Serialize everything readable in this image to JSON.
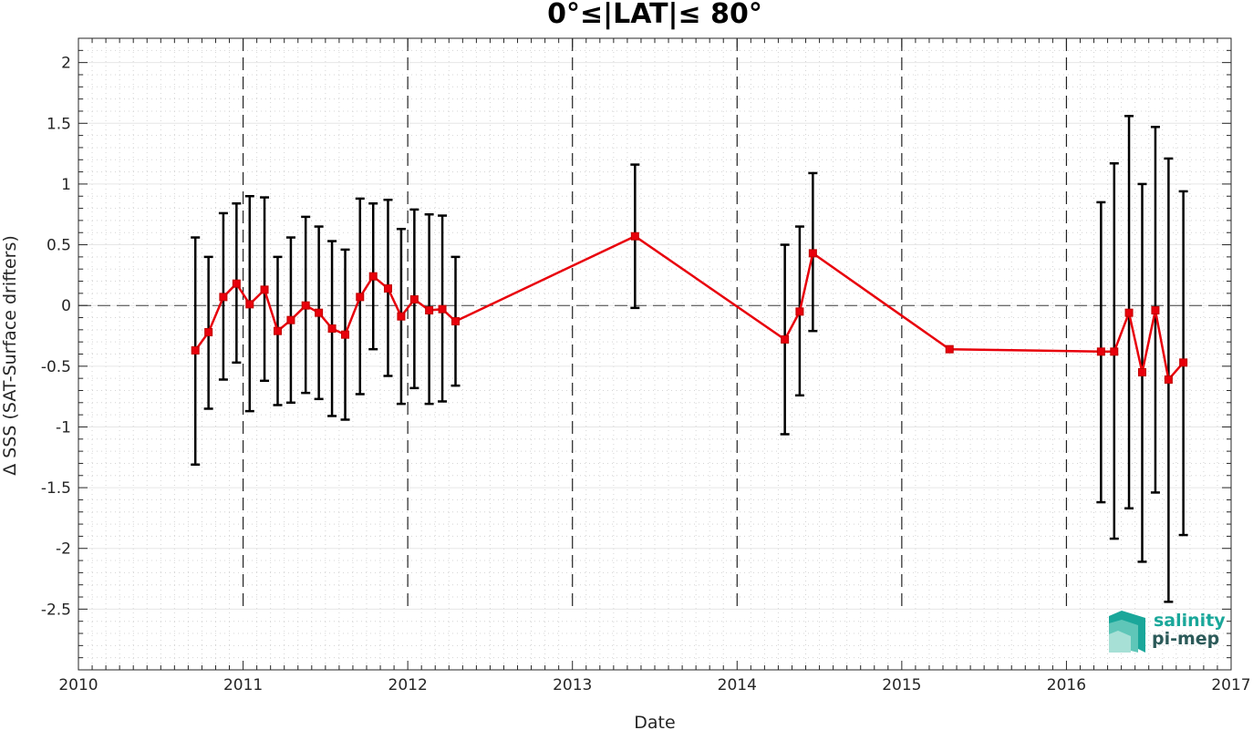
{
  "chart_data": {
    "type": "line",
    "title": "0°≤|LAT|≤ 80°",
    "xlabel": "Date",
    "ylabel": "Δ SSS (SAT-Surface drifters)",
    "xlim": [
      2010,
      2017
    ],
    "ylim": [
      -3,
      2.2
    ],
    "x_ticks": [
      "2010",
      "2011",
      "2012",
      "2013",
      "2014",
      "2015",
      "2016",
      "2017"
    ],
    "y_ticks": [
      "2",
      "1.5",
      "1",
      "0.5",
      "0",
      "-0.5",
      "-1",
      "-1.5",
      "-2",
      "-2.5"
    ],
    "grid": true,
    "minor_grid": true,
    "year_separators": "dashed vertical lines at each year",
    "zero_line": "dashed horizontal line at 0",
    "line_color": "#e8000b",
    "errorbar_color": "#000000",
    "series": [
      {
        "x": [
          2010.71,
          2010.79,
          2010.88,
          2010.96,
          2011.04,
          2011.13,
          2011.21,
          2011.29,
          2011.38,
          2011.46,
          2011.54,
          2011.62,
          2011.71,
          2011.79,
          2011.88,
          2011.96,
          2012.04,
          2012.13,
          2012.21,
          2012.29,
          2013.38,
          2014.29,
          2014.38,
          2014.46,
          2015.29,
          2016.21,
          2016.29,
          2016.38,
          2016.46,
          2016.54,
          2016.62,
          2016.71
        ],
        "y": [
          -0.37,
          -0.22,
          0.07,
          0.18,
          0.01,
          0.13,
          -0.21,
          -0.12,
          0.0,
          -0.06,
          -0.19,
          -0.24,
          0.07,
          0.24,
          0.14,
          -0.09,
          0.05,
          -0.04,
          -0.03,
          -0.13,
          0.57,
          -0.28,
          -0.05,
          0.43,
          -0.36,
          -0.38,
          -0.38,
          -0.06,
          -0.55,
          -0.04,
          -0.61,
          -0.47
        ],
        "y_lower": [
          -1.31,
          -0.85,
          -0.61,
          -0.47,
          -0.87,
          -0.62,
          -0.82,
          -0.8,
          -0.72,
          -0.77,
          -0.91,
          -0.94,
          -0.73,
          -0.36,
          -0.58,
          -0.81,
          -0.68,
          -0.81,
          -0.79,
          -0.66,
          -0.02,
          -1.06,
          -0.74,
          -0.21,
          -0.36,
          -1.62,
          -1.92,
          -1.67,
          -2.11,
          -1.54,
          -2.44,
          -1.89
        ],
        "y_upper": [
          0.56,
          0.4,
          0.76,
          0.84,
          0.9,
          0.89,
          0.4,
          0.56,
          0.73,
          0.65,
          0.53,
          0.46,
          0.88,
          0.84,
          0.87,
          0.63,
          0.79,
          0.75,
          0.74,
          0.4,
          1.16,
          0.5,
          0.65,
          1.09,
          -0.36,
          0.85,
          1.17,
          1.56,
          1.0,
          1.47,
          1.21,
          0.94
        ]
      }
    ]
  },
  "logo": {
    "line1": "salinity",
    "line2": "pi-mep",
    "colors": {
      "teal": "#1aa79a",
      "dark": "#2c5a59"
    }
  }
}
